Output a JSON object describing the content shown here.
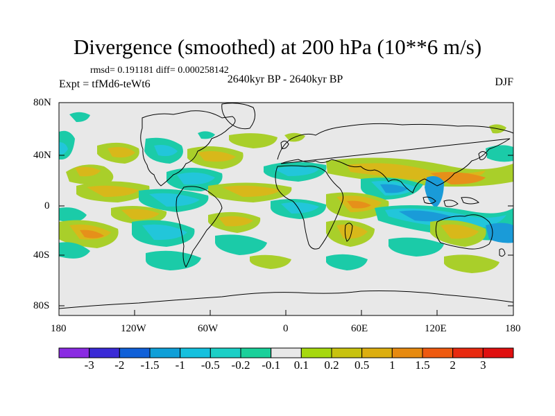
{
  "title": "Divergence (smoothed) at 200 hPa (10**6 m/s)",
  "stats": "rmsd= 0.191181 diff= 0.000258142",
  "period": "2640kyr BP - 2640kyr BP",
  "experiment": "Expt = tfMd6-teWt6",
  "season": "DJF",
  "lat_labels": [
    "80N",
    "40N",
    "0",
    "40S",
    "80S"
  ],
  "lon_labels": [
    "180",
    "120W",
    "60W",
    "0",
    "60E",
    "120E",
    "180"
  ],
  "colorbar": {
    "labels": [
      "-3",
      "-2",
      "-1.5",
      "-1",
      "-0.5",
      "-0.2",
      "-0.1",
      "0.1",
      "0.2",
      "0.5",
      "1",
      "1.5",
      "2",
      "3"
    ],
    "colors": [
      "#8a2be2",
      "#3a2ad6",
      "#1060d8",
      "#0f9fd8",
      "#15c0de",
      "#1ccfc6",
      "#1ad09a",
      "#e8e8e8",
      "#a6d80f",
      "#c8c20f",
      "#dcae10",
      "#e68a10",
      "#ee5a10",
      "#e82a10",
      "#e01010"
    ]
  },
  "map_colors": {
    "background": "#e8e8e8",
    "pos_weak": "#a9cf2a",
    "pos_mid": "#d8b81a",
    "pos_strong": "#e6901a",
    "neg_weak": "#1bcba8",
    "neg_mid": "#22c6da",
    "neg_strong": "#1a9bd8"
  }
}
